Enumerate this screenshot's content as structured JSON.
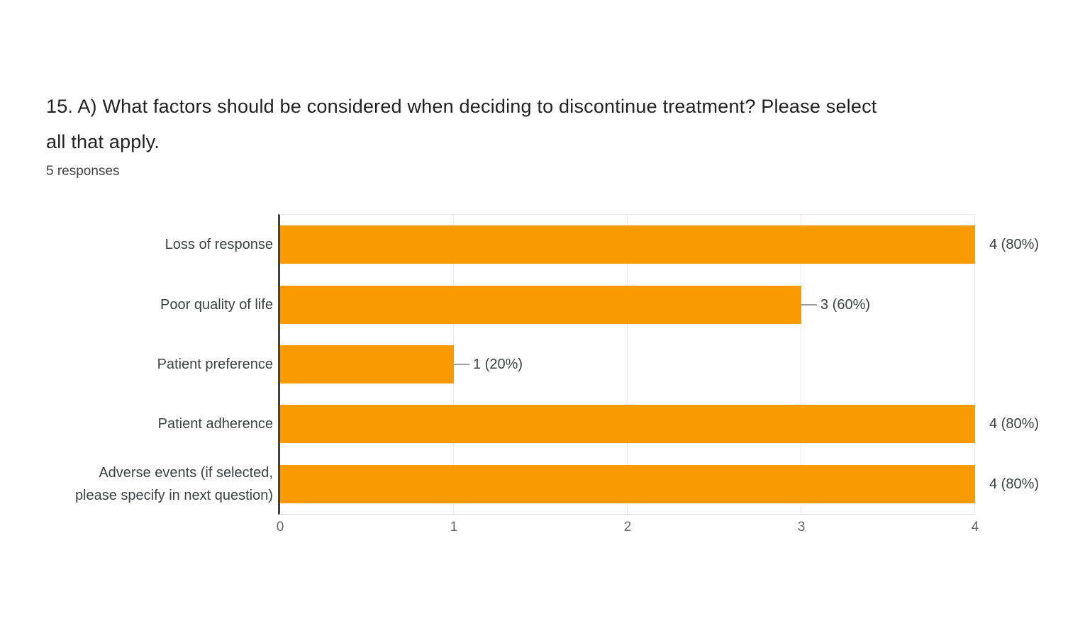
{
  "question": {
    "title": "15. A) What factors should be considered when deciding to discontinue treatment? Please select\nall that apply.",
    "responses_label": "5 responses"
  },
  "chart_data": {
    "type": "bar",
    "orientation": "horizontal",
    "title": "15. A) What factors should be considered when deciding to discontinue treatment? Please select all that apply.",
    "subtitle": "5 responses",
    "categories": [
      "Loss of response",
      "Poor quality of life",
      "Patient preference",
      "Patient adherence",
      "Adverse events (if selected,\nplease specify in next question)"
    ],
    "values": [
      4,
      3,
      1,
      4,
      4
    ],
    "percentages": [
      80,
      60,
      20,
      80,
      80
    ],
    "value_labels": [
      "4 (80%)",
      "3 (60%)",
      "1 (20%)",
      "4 (80%)",
      "4 (80%)"
    ],
    "x_ticks": [
      "0",
      "1",
      "2",
      "3",
      "4"
    ],
    "xlim": [
      0,
      4
    ],
    "grid": true,
    "legend": "none",
    "bar_color": "#FA9B04",
    "axis_color": "#424242",
    "gridline_color": "#e9e9e9",
    "label_color": "#3c4043",
    "tick_color": "#666666"
  }
}
